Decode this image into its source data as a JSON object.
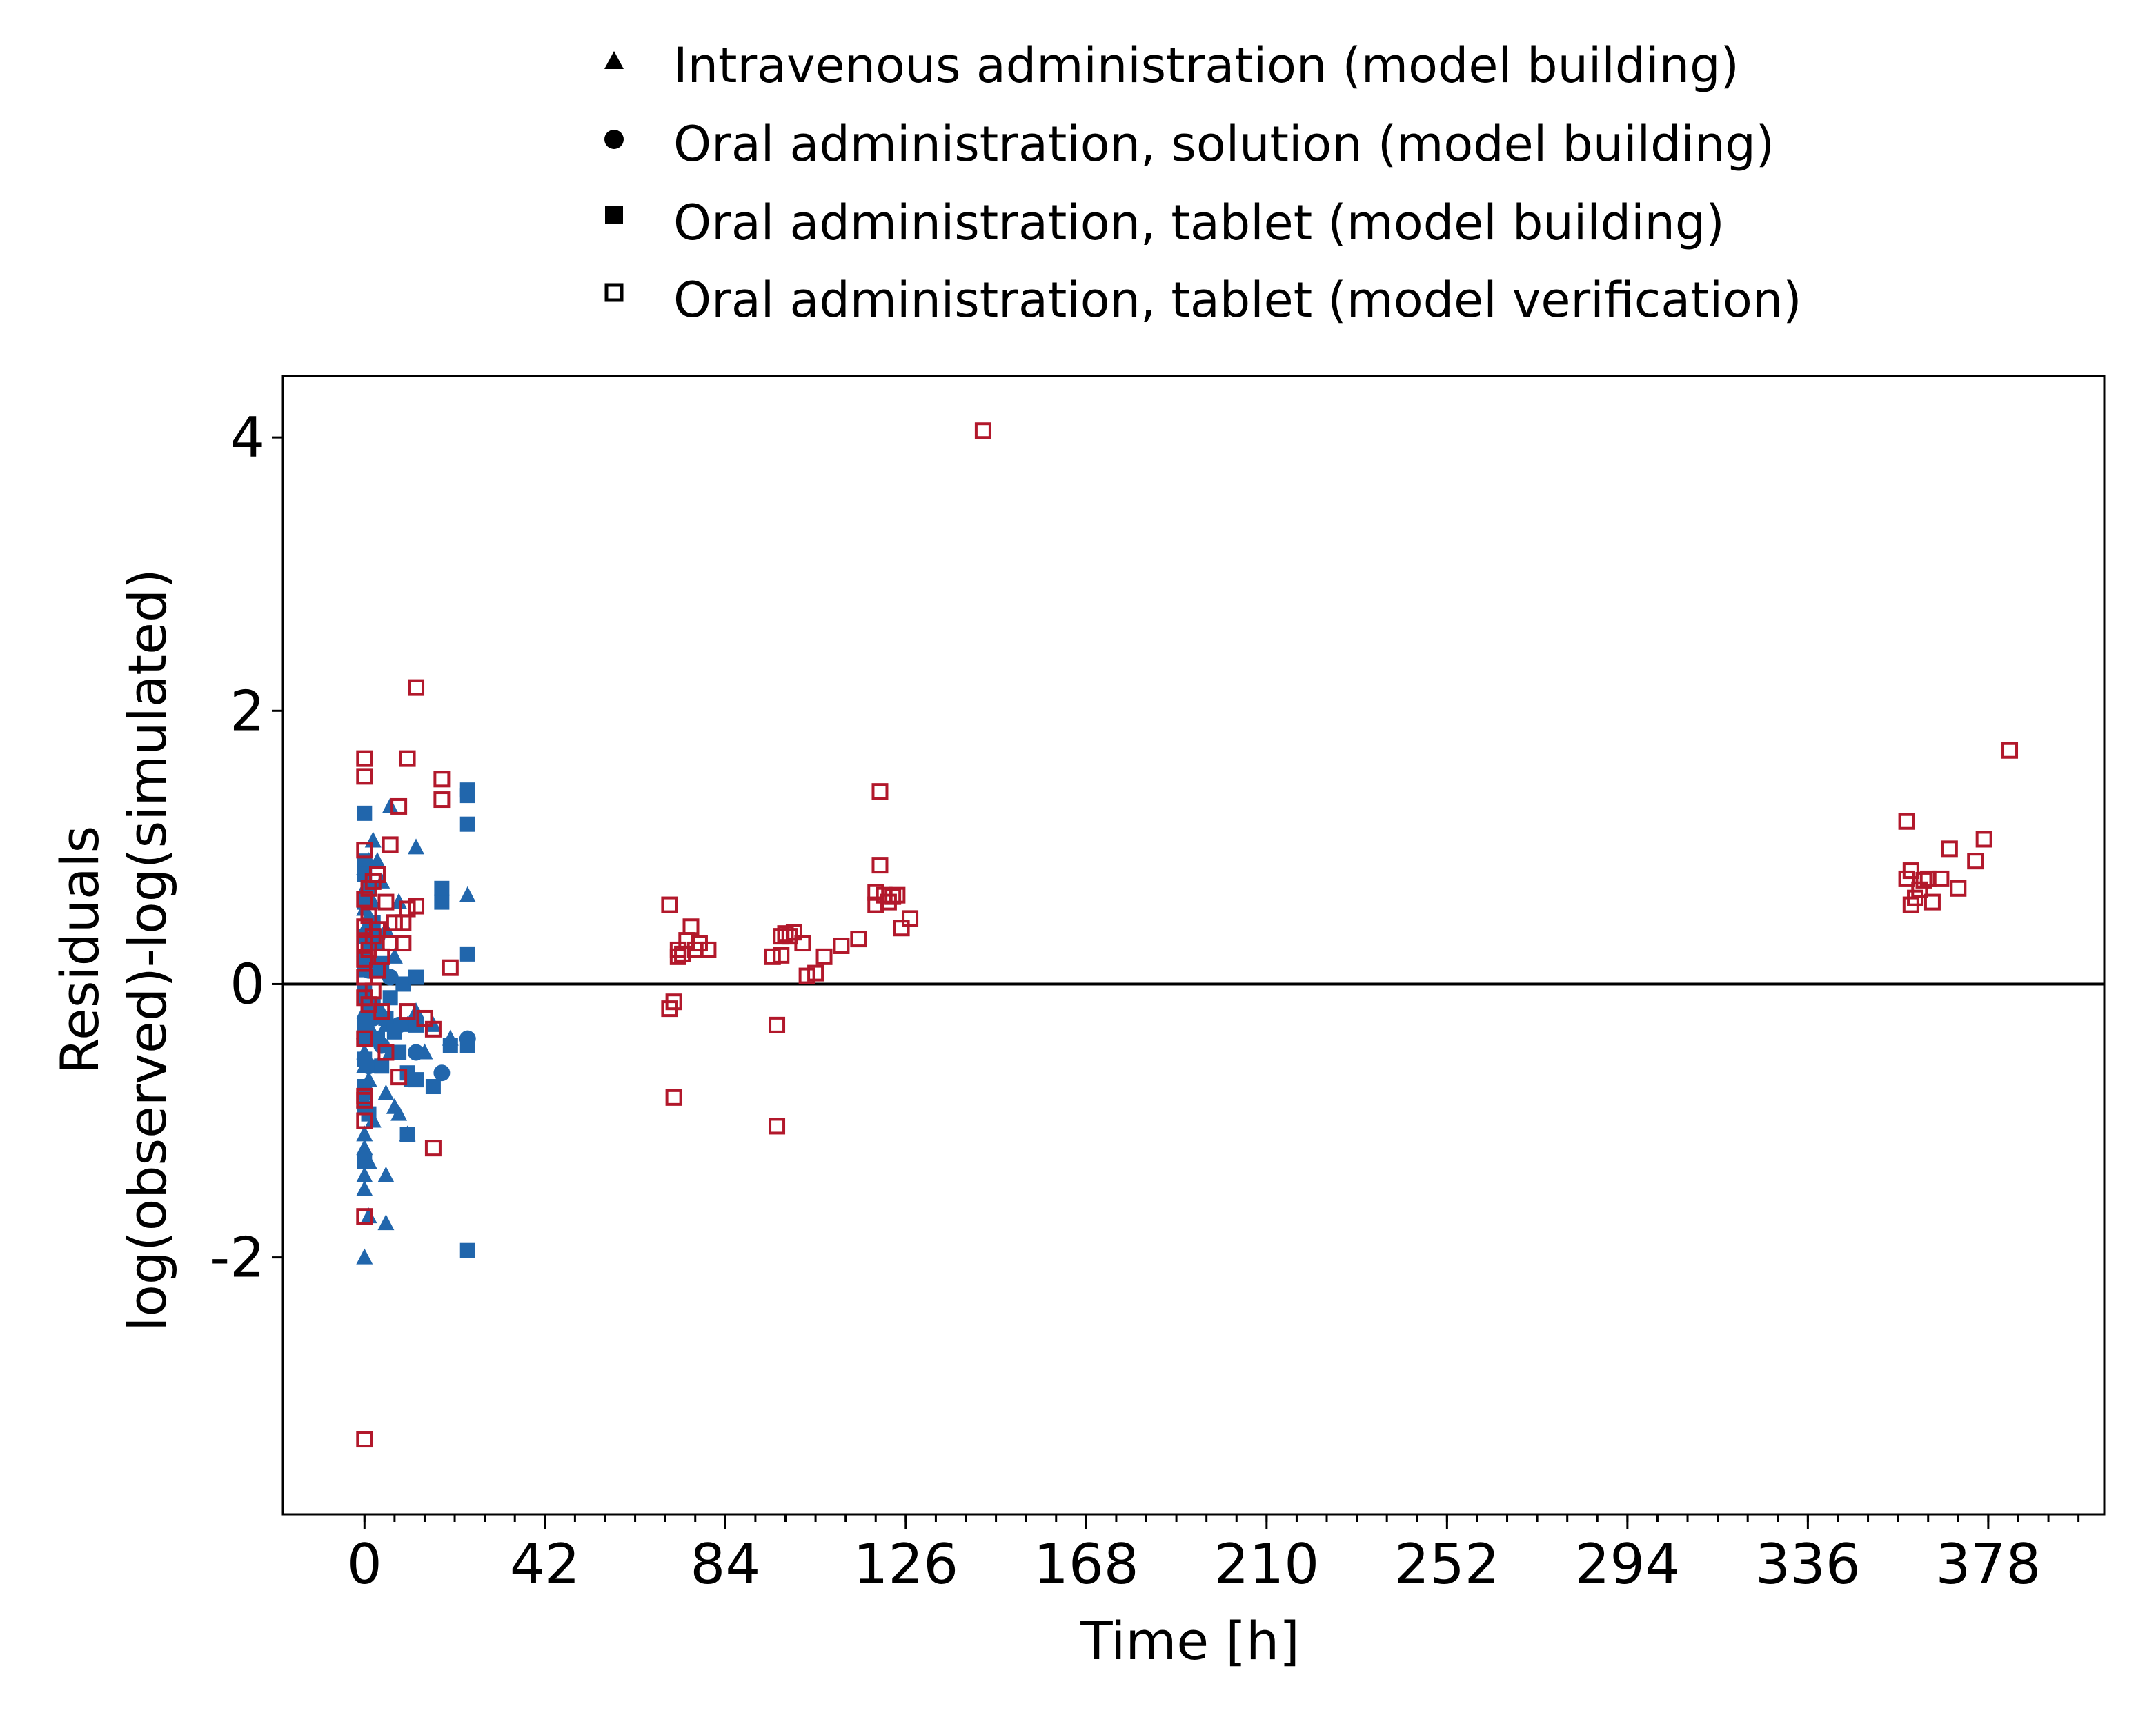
{
  "chart_data": {
    "type": "scatter",
    "xlabel": "Time [h]",
    "ylabel_lines": [
      "Residuals",
      "log(observed)-log(simulated)"
    ],
    "xlim": [
      -19,
      405
    ],
    "ylim": [
      -3.88,
      4.45
    ],
    "x_ticks": [
      0,
      42,
      84,
      126,
      168,
      210,
      252,
      294,
      336,
      378
    ],
    "x_tick_labels": [
      "0",
      "42",
      "84",
      "126",
      "168",
      "210",
      "252",
      "294",
      "336",
      "378"
    ],
    "x_minor_step": 7,
    "y_ticks": [
      -2,
      0,
      2,
      4
    ],
    "y_tick_labels": [
      "-2",
      "0",
      "2",
      "4"
    ],
    "reference_line_y": 0,
    "grid": false,
    "legend_position": "top",
    "colors": {
      "model_building": "#2166ac",
      "model_verification": "#b2182b",
      "axis": "#000000"
    },
    "series": [
      {
        "name": "Intravenous administration (model building)",
        "marker": "triangle",
        "color": "#2166ac",
        "filled": true,
        "points": [
          [
            0,
            -2.0
          ],
          [
            0,
            -1.5
          ],
          [
            0,
            -1.4
          ],
          [
            0,
            -1.2
          ],
          [
            0,
            -1.1
          ],
          [
            0,
            -0.9
          ],
          [
            0,
            -0.8
          ],
          [
            0,
            -0.6
          ],
          [
            0,
            -0.5
          ],
          [
            0,
            -0.35
          ],
          [
            0,
            -0.2
          ],
          [
            0,
            -0.1
          ],
          [
            0,
            0.1
          ],
          [
            0,
            0.25
          ],
          [
            0,
            0.4
          ],
          [
            0,
            0.55
          ],
          [
            0,
            0.7
          ],
          [
            0,
            0.85
          ],
          [
            1,
            -1.7
          ],
          [
            1,
            -1.3
          ],
          [
            1,
            -0.7
          ],
          [
            1,
            -0.3
          ],
          [
            1,
            0.2
          ],
          [
            1,
            0.5
          ],
          [
            1,
            0.9
          ],
          [
            2,
            -1.0
          ],
          [
            2,
            -0.4
          ],
          [
            2,
            0.6
          ],
          [
            2,
            1.05
          ],
          [
            3,
            -0.6
          ],
          [
            3,
            0.3
          ],
          [
            3,
            0.9
          ],
          [
            4,
            -0.2
          ],
          [
            4,
            0.75
          ],
          [
            5,
            -1.75
          ],
          [
            5,
            -1.4
          ],
          [
            5,
            -0.8
          ],
          [
            5,
            -0.3
          ],
          [
            5,
            0.4
          ],
          [
            6,
            1.3
          ],
          [
            6,
            -0.5
          ],
          [
            7,
            -0.9
          ],
          [
            7,
            0.2
          ],
          [
            8,
            -0.95
          ],
          [
            8,
            0.6
          ],
          [
            10,
            -1.1
          ],
          [
            10,
            -0.3
          ],
          [
            11,
            -0.7
          ],
          [
            12,
            1.0
          ],
          [
            12,
            -0.2
          ],
          [
            14,
            -0.5
          ],
          [
            16,
            -0.3
          ],
          [
            20,
            -0.4
          ],
          [
            24,
            0.65
          ]
        ]
      },
      {
        "name": "Oral administration, solution (model building)",
        "marker": "circle",
        "color": "#2166ac",
        "filled": true,
        "points": [
          [
            0,
            -0.4
          ],
          [
            0,
            -0.9
          ],
          [
            1,
            0.1
          ],
          [
            1,
            -0.6
          ],
          [
            2,
            -0.25
          ],
          [
            3,
            0.35
          ],
          [
            4,
            -0.45
          ],
          [
            6,
            0.05
          ],
          [
            8,
            -0.3
          ],
          [
            12,
            -0.5
          ],
          [
            18,
            -0.65
          ],
          [
            24,
            -0.4
          ]
        ]
      },
      {
        "name": "Oral administration, tablet (model building)",
        "marker": "square",
        "color": "#2166ac",
        "filled": true,
        "points": [
          [
            0,
            1.25
          ],
          [
            0,
            0.9
          ],
          [
            0,
            0.8
          ],
          [
            0,
            0.6
          ],
          [
            0,
            0.35
          ],
          [
            0,
            0.15
          ],
          [
            0,
            -0.05
          ],
          [
            0,
            -0.3
          ],
          [
            0,
            -0.55
          ],
          [
            0,
            -0.75
          ],
          [
            0,
            -1.3
          ],
          [
            1,
            -0.95
          ],
          [
            1,
            0.3
          ],
          [
            1,
            0.7
          ],
          [
            2,
            0.45
          ],
          [
            2,
            -0.15
          ],
          [
            3,
            0.1
          ],
          [
            3,
            -0.4
          ],
          [
            4,
            0.15
          ],
          [
            4,
            -0.6
          ],
          [
            5,
            -0.25
          ],
          [
            6,
            -0.1
          ],
          [
            7,
            -0.35
          ],
          [
            8,
            -0.5
          ],
          [
            9,
            0.0
          ],
          [
            10,
            -0.65
          ],
          [
            10,
            -1.1
          ],
          [
            12,
            0.05
          ],
          [
            12,
            -0.3
          ],
          [
            12,
            -0.7
          ],
          [
            16,
            -0.75
          ],
          [
            18,
            0.6
          ],
          [
            18,
            0.7
          ],
          [
            20,
            -0.45
          ],
          [
            24,
            1.42
          ],
          [
            24,
            1.38
          ],
          [
            24,
            1.17
          ],
          [
            24,
            0.22
          ],
          [
            24,
            -0.45
          ],
          [
            24,
            -1.95
          ]
        ]
      },
      {
        "name": "Oral administration, tablet (model verification)",
        "marker": "square-open",
        "color": "#b2182b",
        "filled": false,
        "points": [
          [
            0,
            1.65
          ],
          [
            0,
            1.52
          ],
          [
            0,
            0.98
          ],
          [
            0,
            0.62
          ],
          [
            0,
            0.42
          ],
          [
            0,
            0.3
          ],
          [
            0,
            0.18
          ],
          [
            0,
            0.05
          ],
          [
            0,
            -0.1
          ],
          [
            0,
            -0.4
          ],
          [
            0,
            -0.82
          ],
          [
            0,
            -0.85
          ],
          [
            0,
            -1.0
          ],
          [
            0,
            -1.7
          ],
          [
            0,
            -3.33
          ],
          [
            1,
            0.7
          ],
          [
            1,
            0.5
          ],
          [
            1,
            0.25
          ],
          [
            1,
            -0.15
          ],
          [
            2,
            0.75
          ],
          [
            2,
            0.35
          ],
          [
            2,
            -0.05
          ],
          [
            3,
            0.8
          ],
          [
            3,
            0.4
          ],
          [
            3,
            0.1
          ],
          [
            4,
            0.2
          ],
          [
            4,
            -0.2
          ],
          [
            5,
            0.6
          ],
          [
            5,
            -0.5
          ],
          [
            6,
            1.02
          ],
          [
            6,
            0.3
          ],
          [
            7,
            0.45
          ],
          [
            8,
            1.3
          ],
          [
            8,
            -0.68
          ],
          [
            9,
            0.3
          ],
          [
            9,
            0.45
          ],
          [
            10,
            1.65
          ],
          [
            10,
            0.55
          ],
          [
            10,
            -0.2
          ],
          [
            12,
            2.17
          ],
          [
            12,
            0.57
          ],
          [
            14,
            -0.25
          ],
          [
            16,
            -0.33
          ],
          [
            16,
            -1.2
          ],
          [
            18,
            1.5
          ],
          [
            18,
            1.35
          ],
          [
            20,
            0.12
          ],
          [
            71,
            0.58
          ],
          [
            71,
            -0.18
          ],
          [
            72,
            -0.83
          ],
          [
            72,
            -0.13
          ],
          [
            73,
            0.2
          ],
          [
            73,
            0.25
          ],
          [
            74,
            0.22
          ],
          [
            75,
            0.32
          ],
          [
            76,
            0.42
          ],
          [
            77,
            0.25
          ],
          [
            78,
            0.3
          ],
          [
            80,
            0.25
          ],
          [
            95,
            0.2
          ],
          [
            96,
            -0.3
          ],
          [
            96,
            -1.04
          ],
          [
            97,
            0.21
          ],
          [
            97,
            0.35
          ],
          [
            98,
            0.37
          ],
          [
            99,
            0.35
          ],
          [
            100,
            0.38
          ],
          [
            102,
            0.3
          ],
          [
            103,
            0.06
          ],
          [
            105,
            0.08
          ],
          [
            107,
            0.2
          ],
          [
            111,
            0.28
          ],
          [
            115,
            0.33
          ],
          [
            119,
            0.67
          ],
          [
            119,
            0.58
          ],
          [
            120,
            1.41
          ],
          [
            120,
            0.87
          ],
          [
            121,
            0.65
          ],
          [
            122,
            0.6
          ],
          [
            123,
            0.64
          ],
          [
            124,
            0.65
          ],
          [
            125,
            0.41
          ],
          [
            127,
            0.48
          ],
          [
            144,
            4.05
          ],
          [
            359,
            1.19
          ],
          [
            359,
            0.77
          ],
          [
            360,
            0.83
          ],
          [
            360,
            0.58
          ],
          [
            361,
            0.63
          ],
          [
            362,
            0.69
          ],
          [
            363,
            0.76
          ],
          [
            364,
            0.77
          ],
          [
            365,
            0.6
          ],
          [
            367,
            0.77
          ],
          [
            369,
            0.99
          ],
          [
            371,
            0.7
          ],
          [
            375,
            0.9
          ],
          [
            377,
            1.06
          ],
          [
            383,
            1.71
          ]
        ]
      }
    ]
  }
}
